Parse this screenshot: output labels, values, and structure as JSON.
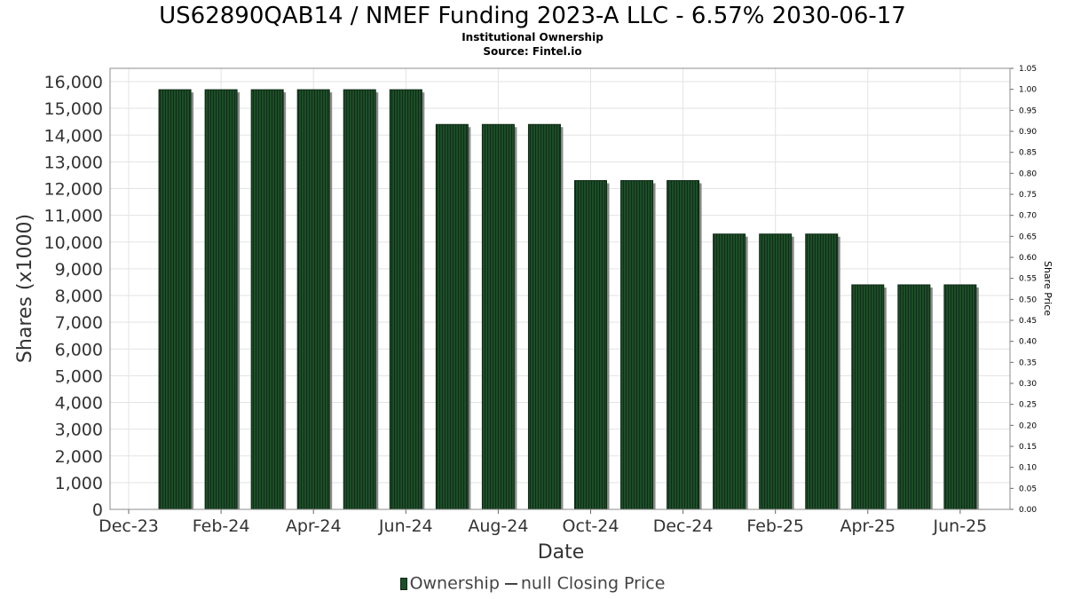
{
  "title": "US62890QAB14 / NMEF Funding 2023-A LLC - 6.57% 2030-06-17",
  "subtitle_1": "Institutional Ownership",
  "subtitle_2": "Source: Fintel.io",
  "legend": {
    "ownership": "Ownership",
    "price": "null Closing Price"
  },
  "colors": {
    "bar_fill": "#1d4d28",
    "bar_shadow": "#8a8a8a",
    "grid": "#e3e3e3",
    "axis_text": "#333333"
  },
  "chart_data": {
    "type": "bar",
    "xlabel": "Date",
    "ylabel": "Shares (x1000)",
    "y2label": "Share Price",
    "x_tick_labels": [
      "Dec-23",
      "Feb-24",
      "Apr-24",
      "Jun-24",
      "Aug-24",
      "Oct-24",
      "Dec-24",
      "Feb-25",
      "Apr-25",
      "Jun-25"
    ],
    "y_tick_labels": [
      "0",
      "1,000",
      "2,000",
      "3,000",
      "4,000",
      "5,000",
      "6,000",
      "7,000",
      "8,000",
      "9,000",
      "10,000",
      "11,000",
      "12,000",
      "13,000",
      "14,000",
      "15,000",
      "16,000"
    ],
    "y2_tick_labels": [
      "0.00",
      "0.05",
      "0.10",
      "0.15",
      "0.20",
      "0.25",
      "0.30",
      "0.35",
      "0.40",
      "0.45",
      "0.50",
      "0.55",
      "0.60",
      "0.65",
      "0.70",
      "0.75",
      "0.80",
      "0.85",
      "0.90",
      "0.95",
      "1.00",
      "1.05"
    ],
    "ylim": [
      0,
      16500
    ],
    "y2lim": [
      0,
      1.05
    ],
    "grid": true,
    "legend_position": "bottom",
    "series": [
      {
        "name": "Ownership",
        "points": [
          {
            "x": "2024-01",
            "y": 15700
          },
          {
            "x": "2024-02",
            "y": 15700
          },
          {
            "x": "2024-03",
            "y": 15700
          },
          {
            "x": "2024-04",
            "y": 15700
          },
          {
            "x": "2024-05",
            "y": 15700
          },
          {
            "x": "2024-06",
            "y": 15700
          },
          {
            "x": "2024-07",
            "y": 14400
          },
          {
            "x": "2024-08",
            "y": 14400
          },
          {
            "x": "2024-09",
            "y": 14400
          },
          {
            "x": "2024-10",
            "y": 12300
          },
          {
            "x": "2024-11",
            "y": 12300
          },
          {
            "x": "2024-12",
            "y": 12300
          },
          {
            "x": "2025-01",
            "y": 10300
          },
          {
            "x": "2025-02",
            "y": 10300
          },
          {
            "x": "2025-03",
            "y": 10300
          },
          {
            "x": "2025-04",
            "y": 8400
          },
          {
            "x": "2025-05",
            "y": 8400
          },
          {
            "x": "2025-06",
            "y": 8400
          }
        ]
      }
    ]
  }
}
